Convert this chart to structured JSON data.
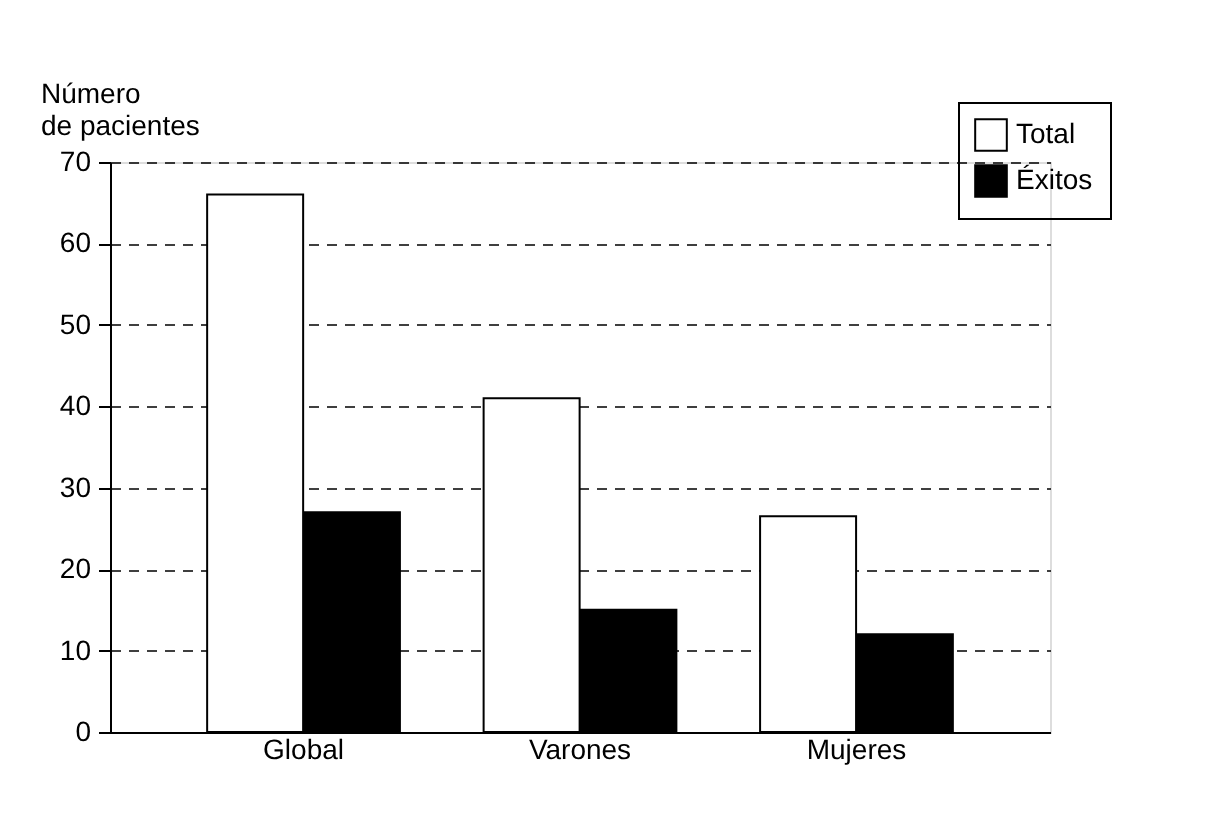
{
  "chart_data": {
    "type": "bar",
    "ylabel": "Número\nde pacientes",
    "categories": [
      "Global",
      "Varones",
      "Mujeres"
    ],
    "series": [
      {
        "name": "Total",
        "color": "#ffffff",
        "values": [
          66,
          41,
          26.5
        ]
      },
      {
        "name": "Éxitos",
        "color": "#000000",
        "values": [
          27,
          15,
          12
        ]
      }
    ],
    "ylim": [
      0,
      70
    ],
    "yticks": [
      0,
      10,
      20,
      30,
      40,
      50,
      60,
      70
    ],
    "grid": "y",
    "legend": "top right"
  }
}
